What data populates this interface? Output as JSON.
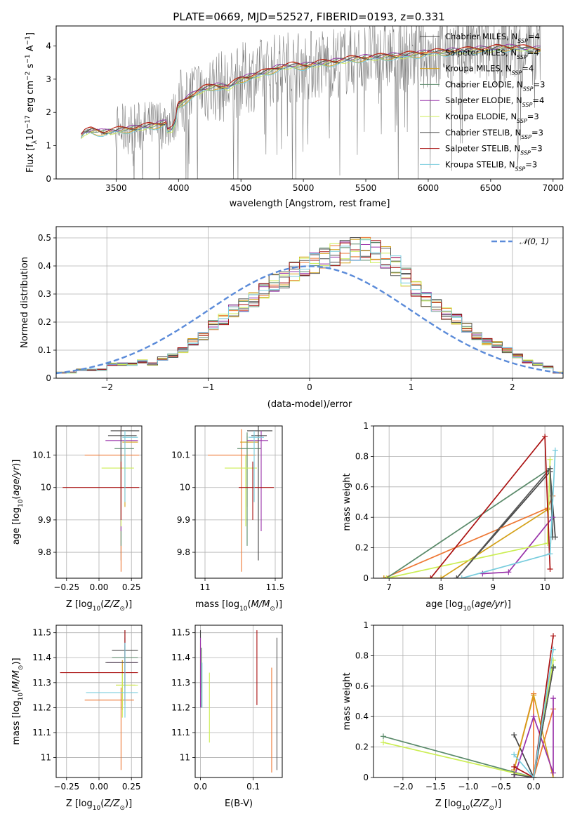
{
  "figure": {
    "title": "PLATE=0669, MJD=52527, FIBERID=0193, z=0.331"
  },
  "models": [
    {
      "name": "Chabrier MILES, N",
      "sub": "SSP",
      "suffix": "=4",
      "color": "#444444"
    },
    {
      "name": "Salpeter MILES, N",
      "sub": "SSP",
      "suffix": "=4",
      "color": "#ee7733"
    },
    {
      "name": "Kroupa MILES, N",
      "sub": "SSP",
      "suffix": "=4",
      "color": "#d4a017"
    },
    {
      "name": "Chabrier ELODIE, N",
      "sub": "SSP",
      "suffix": "=3",
      "color": "#5a8a6a"
    },
    {
      "name": "Salpeter ELODIE, N",
      "sub": "SSP",
      "suffix": "=4",
      "color": "#9933aa"
    },
    {
      "name": "Kroupa ELODIE, N",
      "sub": "SSP",
      "suffix": "=3",
      "color": "#ccee55"
    },
    {
      "name": "Chabrier STELIB, N",
      "sub": "SSP",
      "suffix": "=3",
      "color": "#555555"
    },
    {
      "name": "Salpeter STELIB, N",
      "sub": "SSP",
      "suffix": "=3",
      "color": "#aa1111"
    },
    {
      "name": "Kroupa STELIB, N",
      "sub": "SSP",
      "suffix": "=3",
      "color": "#77ccdd"
    }
  ],
  "chart_data": [
    {
      "id": "spectrum",
      "type": "line",
      "xlabel": "wavelength [Angstrom, rest frame]",
      "ylabel": "Flux [f_λ 10^-17 erg cm^-2 s^-1 A^-1]",
      "xlim": [
        3020,
        7080
      ],
      "ylim": [
        0,
        4.6
      ],
      "xticks": [
        3500,
        4000,
        4500,
        5000,
        5500,
        6000,
        6500,
        7000
      ],
      "yticks": [
        0,
        1,
        2,
        3,
        4
      ],
      "grid": false,
      "legend": "top-right",
      "data_color": "#808080",
      "model_x": [
        3220,
        3250,
        3300,
        3400,
        3500,
        3600,
        3700,
        3800,
        3900,
        3950,
        4000,
        4100,
        4200,
        4300,
        4400,
        4500,
        4600,
        4700,
        4800,
        4900,
        5000,
        5100,
        5200,
        5300,
        5400,
        5500,
        5600,
        5700,
        5800,
        5900,
        6000,
        6100,
        6200,
        6300,
        6400,
        6500,
        6600,
        6700,
        6800,
        6900
      ],
      "model_y": [
        1.3,
        1.4,
        1.45,
        1.4,
        1.45,
        1.5,
        1.55,
        1.6,
        1.7,
        1.75,
        2.2,
        2.5,
        2.7,
        2.8,
        2.75,
        3.0,
        3.1,
        3.2,
        3.35,
        3.4,
        3.4,
        3.45,
        3.5,
        3.55,
        3.6,
        3.65,
        3.65,
        3.7,
        3.7,
        3.75,
        3.8,
        3.8,
        3.85,
        3.85,
        3.9,
        3.9,
        3.95,
        3.95,
        3.9,
        3.9
      ]
    },
    {
      "id": "residuals",
      "type": "histogram",
      "xlabel": "(data-model)/error",
      "ylabel": "Normed distribution",
      "xlim": [
        -2.5,
        2.5
      ],
      "ylim": [
        0,
        0.54
      ],
      "xticks": [
        -2,
        -1,
        0,
        1,
        2
      ],
      "yticks": [
        0.0,
        0.1,
        0.2,
        0.3,
        0.4,
        0.5
      ],
      "grid": true,
      "legend": "top-right",
      "gaussian_label": "𝒩(0, 1)",
      "gaussian_color": "#5b8bd9",
      "bin_width": 0.1,
      "bin_start": -2.5,
      "values": [
        0.02,
        0.02,
        0.03,
        0.03,
        0.03,
        0.05,
        0.05,
        0.05,
        0.06,
        0.05,
        0.07,
        0.08,
        0.1,
        0.13,
        0.15,
        0.19,
        0.21,
        0.24,
        0.26,
        0.28,
        0.31,
        0.34,
        0.35,
        0.38,
        0.4,
        0.41,
        0.43,
        0.44,
        0.45,
        0.46,
        0.46,
        0.45,
        0.43,
        0.4,
        0.36,
        0.32,
        0.28,
        0.26,
        0.23,
        0.21,
        0.18,
        0.15,
        0.13,
        0.12,
        0.1,
        0.08,
        0.06,
        0.05,
        0.04,
        0.02
      ]
    },
    {
      "id": "age_vs_Z",
      "type": "scatter",
      "xlabel": "Z [log10(Z/Z⊙)]",
      "ylabel": "age [log10(age/yr)]",
      "xlim": [
        -0.33,
        0.33
      ],
      "ylim": [
        9.72,
        10.19
      ],
      "xticks": [
        -0.25,
        0.0,
        0.25
      ],
      "xticklabels": [
        "−0.25",
        "0.00",
        "0.25"
      ],
      "yticks": [
        9.8,
        9.9,
        10.0,
        10.1
      ],
      "grid": true,
      "points": [
        {
          "x": 0.17,
          "y": 10.175,
          "xerr": [
            0.08,
            0.14
          ],
          "yerr": [
            0.4,
            0.015
          ]
        },
        {
          "x": 0.17,
          "y": 10.1,
          "xerr": [
            0.28,
            0.14
          ],
          "yerr": [
            0.36,
            0.08
          ]
        },
        {
          "x": 0.2,
          "y": 10.14,
          "xerr": [
            0.02,
            0.1
          ],
          "yerr": [
            0.2,
            0.02
          ]
        },
        {
          "x": 0.17,
          "y": 10.12,
          "xerr": [
            0.05,
            0.1
          ],
          "yerr": [
            0.3,
            0.05
          ]
        },
        {
          "x": 0.17,
          "y": 10.145,
          "xerr": [
            0.12,
            0.13
          ],
          "yerr": [
            0.28,
            0.03
          ]
        },
        {
          "x": 0.17,
          "y": 10.06,
          "xerr": [
            0.15,
            0.1
          ],
          "yerr": [
            0.18,
            0.04
          ]
        },
        {
          "x": 0.17,
          "y": 10.16,
          "xerr": [
            0.1,
            0.12
          ],
          "yerr": [
            0.26,
            0.02
          ]
        },
        {
          "x": 0.17,
          "y": 10.0,
          "xerr": [
            0.45,
            0.14
          ],
          "yerr": [
            0.1,
            0.08
          ]
        },
        {
          "x": 0.2,
          "y": 10.155,
          "xerr": [
            0.02,
            0.1
          ],
          "yerr": [
            0.2,
            0.02
          ]
        }
      ]
    },
    {
      "id": "age_vs_mass",
      "type": "scatter",
      "xlabel": "mass [log10(M/M⊙)]",
      "ylabel": "",
      "xlim": [
        10.93,
        11.55
      ],
      "ylim": [
        9.72,
        10.19
      ],
      "xticks": [
        11.0,
        11.5
      ],
      "yticks": [
        9.8,
        9.9,
        10.0,
        10.1
      ],
      "grid": true,
      "points": [
        {
          "x": 11.38,
          "y": 10.175,
          "xerr": [
            0.08,
            0.1
          ],
          "yerr": [
            0.4,
            0.015
          ]
        },
        {
          "x": 11.26,
          "y": 10.1,
          "xerr": [
            0.24,
            0.1
          ],
          "yerr": [
            0.36,
            0.08
          ]
        },
        {
          "x": 11.3,
          "y": 10.14,
          "xerr": [
            0.05,
            0.08
          ],
          "yerr": [
            0.2,
            0.02
          ]
        },
        {
          "x": 11.3,
          "y": 10.12,
          "xerr": [
            0.07,
            0.1
          ],
          "yerr": [
            0.3,
            0.05
          ]
        },
        {
          "x": 11.4,
          "y": 10.145,
          "xerr": [
            0.1,
            0.05
          ],
          "yerr": [
            0.28,
            0.03
          ]
        },
        {
          "x": 11.29,
          "y": 10.06,
          "xerr": [
            0.15,
            0.08
          ],
          "yerr": [
            0.18,
            0.04
          ]
        },
        {
          "x": 11.38,
          "y": 10.16,
          "xerr": [
            0.05,
            0.06
          ],
          "yerr": [
            0.26,
            0.02
          ]
        },
        {
          "x": 11.34,
          "y": 10.0,
          "xerr": [
            0.1,
            0.15
          ],
          "yerr": [
            0.1,
            0.08
          ]
        },
        {
          "x": 11.35,
          "y": 10.155,
          "xerr": [
            0.04,
            0.07
          ],
          "yerr": [
            0.2,
            0.02
          ]
        }
      ]
    },
    {
      "id": "mass_weight_vs_age",
      "type": "line",
      "xlabel": "age [log10(age/yr)]",
      "ylabel": "mass weight",
      "xlim": [
        6.7,
        10.35
      ],
      "ylim": [
        0,
        1.0
      ],
      "xticks": [
        7,
        8,
        9,
        10
      ],
      "yticks": [
        0.0,
        0.2,
        0.4,
        0.6,
        0.8,
        1.0
      ],
      "grid": true,
      "series": [
        {
          "x": [
            8.3,
            10.1,
            10.2
          ],
          "y": [
            0.0,
            0.7,
            0.27
          ]
        },
        {
          "x": [
            6.9,
            10.05,
            10.15
          ],
          "y": [
            0.0,
            0.46,
            0.54
          ]
        },
        {
          "x": [
            6.9,
            8.0,
            10.05
          ],
          "y": [
            0.0,
            0.0,
            0.45
          ]
        },
        {
          "x": [
            6.95,
            10.1,
            10.15
          ],
          "y": [
            0.0,
            0.72,
            0.27
          ]
        },
        {
          "x": [
            8.8,
            9.3,
            10.15
          ],
          "y": [
            0.03,
            0.04,
            0.4
          ]
        },
        {
          "x": [
            6.95,
            10.05,
            10.1
          ],
          "y": [
            0.0,
            0.23,
            0.78
          ]
        },
        {
          "x": [
            8.3,
            10.1,
            10.15
          ],
          "y": [
            0.0,
            0.72,
            0.27
          ]
        },
        {
          "x": [
            7.8,
            10.0,
            10.1
          ],
          "y": [
            0.0,
            0.93,
            0.06
          ]
        },
        {
          "x": [
            8.4,
            10.1,
            10.2
          ],
          "y": [
            0.0,
            0.16,
            0.84
          ]
        }
      ]
    },
    {
      "id": "mass_vs_Z",
      "type": "scatter",
      "xlabel": "Z [log10(Z/Z⊙)]",
      "ylabel": "mass [log10(M/M⊙)]",
      "xlim": [
        -0.33,
        0.33
      ],
      "ylim": [
        10.92,
        11.53
      ],
      "xticks": [
        -0.25,
        0.0,
        0.25
      ],
      "xticklabels": [
        "−0.25",
        "0.00",
        "0.25"
      ],
      "yticks": [
        11.0,
        11.1,
        11.2,
        11.3,
        11.4,
        11.5
      ],
      "grid": true,
      "points": [
        {
          "x": 0.2,
          "y": 11.43,
          "xerr": [
            0.1,
            0.1
          ],
          "yerr": [
            0.05,
            0.08
          ]
        },
        {
          "x": 0.17,
          "y": 11.23,
          "xerr": [
            0.28,
            0.1
          ],
          "yerr": [
            0.28,
            0.05
          ]
        },
        {
          "x": 0.18,
          "y": 11.29,
          "xerr": [
            0.05,
            0.1
          ],
          "yerr": [
            0.1,
            0.1
          ]
        },
        {
          "x": 0.2,
          "y": 11.4,
          "xerr": [
            0.1,
            0.1
          ],
          "yerr": [
            0.1,
            0.05
          ]
        },
        {
          "x": 0.2,
          "y": 11.38,
          "xerr": [
            0.14,
            0.1
          ],
          "yerr": [
            0.15,
            0.1
          ]
        },
        {
          "x": 0.18,
          "y": 11.29,
          "xerr": [
            0.05,
            0.12
          ],
          "yerr": [
            0.13,
            0.05
          ]
        },
        {
          "x": 0.2,
          "y": 11.38,
          "xerr": [
            0.15,
            0.1
          ],
          "yerr": [
            0.1,
            0.13
          ]
        },
        {
          "x": 0.2,
          "y": 11.34,
          "xerr": [
            0.5,
            0.1
          ],
          "yerr": [
            0.13,
            0.17
          ]
        },
        {
          "x": 0.2,
          "y": 11.26,
          "xerr": [
            0.3,
            0.1
          ],
          "yerr": [
            0.1,
            0.2
          ]
        }
      ]
    },
    {
      "id": "mass_vs_EBV",
      "type": "scatter",
      "xlabel": "E(B-V)",
      "ylabel": "",
      "xlim": [
        -0.01,
        0.155
      ],
      "ylim": [
        10.92,
        11.53
      ],
      "xticks": [
        0.0,
        0.1
      ],
      "xticklabels": [
        "0.0",
        "0.1"
      ],
      "yticks": [
        11.0,
        11.1,
        11.2,
        11.3,
        11.4,
        11.5
      ],
      "grid": true,
      "points": [
        {
          "x": 0.0,
          "y": 11.42,
          "yerr": [
            0.14,
            0.09
          ]
        },
        {
          "x": 0.135,
          "y": 11.15,
          "yerr": [
            0.21,
            0.21
          ]
        },
        {
          "x": 0.0,
          "y": 11.38,
          "yerr": [
            0.12,
            0.08
          ]
        },
        {
          "x": 0.002,
          "y": 11.32,
          "yerr": [
            0.12,
            0.12
          ]
        },
        {
          "x": 0.0,
          "y": 11.35,
          "yerr": [
            0.15,
            0.13
          ]
        },
        {
          "x": 0.017,
          "y": 11.2,
          "yerr": [
            0.14,
            0.14
          ]
        },
        {
          "x": 0.145,
          "y": 11.2,
          "yerr": [
            0.25,
            0.28
          ]
        },
        {
          "x": 0.107,
          "y": 11.36,
          "yerr": [
            0.15,
            0.15
          ]
        },
        {
          "x": 0.003,
          "y": 11.3,
          "yerr": [
            0.1,
            0.08
          ]
        }
      ]
    },
    {
      "id": "mass_weight_vs_Z",
      "type": "line",
      "xlabel": "Z [log10(Z/Z⊙)]",
      "ylabel": "mass weight",
      "xlim": [
        -2.45,
        0.45
      ],
      "ylim": [
        0,
        1.0
      ],
      "xticks": [
        -2.0,
        -1.5,
        -1.0,
        -0.5,
        0.0
      ],
      "xticklabels": [
        "−2.0",
        "−1.5",
        "−1.0",
        "−0.5",
        "0.0"
      ],
      "yticks": [
        0.0,
        0.2,
        0.4,
        0.6,
        0.8,
        1.0
      ],
      "grid": true,
      "series": [
        {
          "x": [
            -0.3,
            0.0,
            0.3
          ],
          "y": [
            0.28,
            0.0,
            0.72
          ]
        },
        {
          "x": [
            -0.3,
            0.0,
            0.0,
            0.3
          ],
          "y": [
            0.05,
            0.55,
            0.0,
            0.45
          ]
        },
        {
          "x": [
            -0.3,
            0.0,
            0.3
          ],
          "y": [
            0.05,
            0.54,
            0.0
          ]
        },
        {
          "x": [
            -2.3,
            0.0,
            0.3
          ],
          "y": [
            0.27,
            0.0,
            0.73
          ]
        },
        {
          "x": [
            -0.3,
            0.0,
            0.3,
            0.3
          ],
          "y": [
            0.0,
            0.4,
            0.03,
            0.52
          ]
        },
        {
          "x": [
            -2.3,
            0.0,
            0.3
          ],
          "y": [
            0.23,
            0.0,
            0.77
          ]
        },
        {
          "x": [
            -0.3,
            0.0,
            0.3
          ],
          "y": [
            0.02,
            0.0,
            0.72
          ]
        },
        {
          "x": [
            -0.3,
            0.0,
            0.3
          ],
          "y": [
            0.07,
            0.0,
            0.93
          ]
        },
        {
          "x": [
            -0.3,
            0.0,
            0.3
          ],
          "y": [
            0.15,
            0.0,
            0.84
          ]
        }
      ]
    }
  ]
}
